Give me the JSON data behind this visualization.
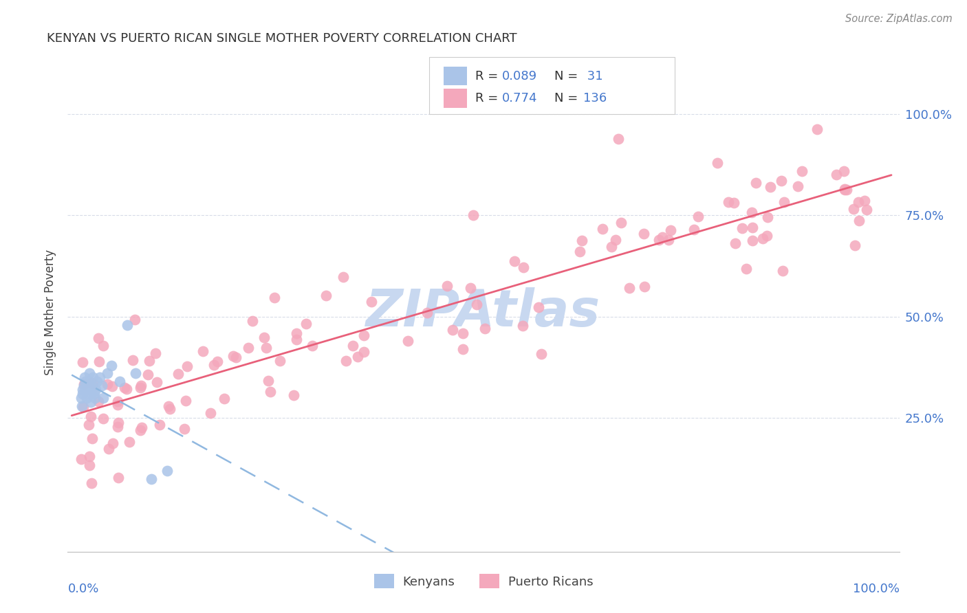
{
  "title": "KENYAN VS PUERTO RICAN SINGLE MOTHER POVERTY CORRELATION CHART",
  "source": "Source: ZipAtlas.com",
  "ylabel": "Single Mother Poverty",
  "legend_label1": "Kenyans",
  "legend_label2": "Puerto Ricans",
  "kenyan_color": "#aac4e8",
  "puerto_rican_color": "#f4a8bc",
  "kenyan_line_color": "#90b8e0",
  "puerto_rican_line_color": "#e8607a",
  "watermark_text": "ZIPAtlas",
  "watermark_color": "#c8d8f0",
  "background_color": "#ffffff",
  "grid_color": "#d8dce8",
  "title_color": "#333333",
  "axis_color": "#4477cc",
  "legend_R_color": "#4477cc",
  "legend_text_color": "#333333"
}
